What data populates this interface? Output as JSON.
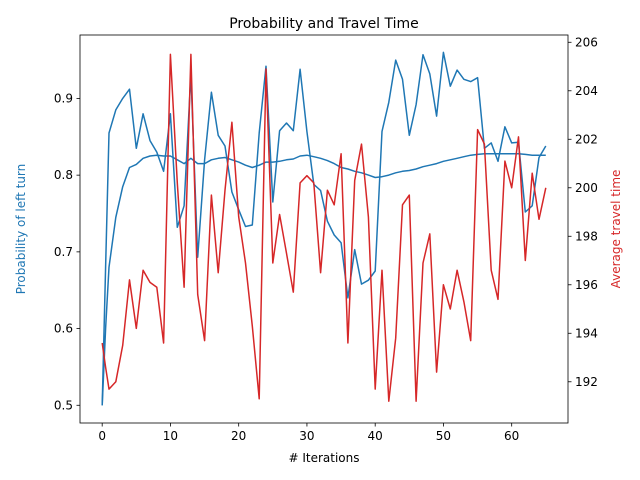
{
  "chart_data": {
    "type": "line",
    "title": "Probability and Travel Time",
    "xlabel": "# Iterations",
    "ylabel_left": "Probability of left turn",
    "ylabel_right": "Average travel time",
    "xlim": [
      -3.25,
      68.25
    ],
    "ylim_left": [
      0.4769,
      0.9827
    ],
    "ylim_right": [
      190.3,
      206.3
    ],
    "x_ticks": [
      0,
      10,
      20,
      30,
      40,
      50,
      60
    ],
    "x_tick_labels": [
      "0",
      "10",
      "20",
      "30",
      "40",
      "50",
      "60"
    ],
    "y_left_ticks": [
      0.5,
      0.6,
      0.7,
      0.8,
      0.9
    ],
    "y_left_tick_labels": [
      "0.5",
      "0.6",
      "0.7",
      "0.8",
      "0.9"
    ],
    "y_right_ticks": [
      192,
      194,
      196,
      198,
      200,
      202,
      204,
      206
    ],
    "y_right_tick_labels": [
      "192",
      "194",
      "196",
      "198",
      "200",
      "202",
      "204",
      "206"
    ],
    "grid": false,
    "colors": {
      "left": "#1f77b4",
      "right": "#d62728"
    },
    "series": [
      {
        "axis": "left",
        "x": [
          0,
          0.5,
          1,
          2,
          3,
          4,
          5,
          6,
          7,
          8,
          9,
          10,
          11,
          12,
          13,
          14,
          15,
          16,
          17,
          18,
          19,
          20,
          21,
          22,
          23,
          24,
          25,
          26,
          27,
          28,
          29,
          30,
          31,
          32,
          33,
          34,
          35,
          36,
          37,
          38,
          39,
          40,
          41,
          42,
          43,
          44,
          45,
          46,
          47,
          48,
          49,
          50,
          51,
          52,
          53,
          54,
          55,
          56,
          57,
          58,
          59,
          60,
          61,
          62,
          63,
          64,
          65
        ],
        "values": [
          0.5,
          0.68,
          0.855,
          0.885,
          0.9,
          0.912,
          0.835,
          0.88,
          0.845,
          0.83,
          0.805,
          0.88,
          0.732,
          0.76,
          0.932,
          0.693,
          0.82,
          0.908,
          0.852,
          0.838,
          0.778,
          0.755,
          0.733,
          0.735,
          0.855,
          0.942,
          0.765,
          0.858,
          0.868,
          0.858,
          0.938,
          0.857,
          0.788,
          0.78,
          0.74,
          0.722,
          0.712,
          0.64,
          0.703,
          0.658,
          0.663,
          0.675,
          0.857,
          0.895,
          0.95,
          0.925,
          0.852,
          0.892,
          0.957,
          0.932,
          0.877,
          0.96,
          0.916,
          0.937,
          0.925,
          0.922,
          0.927,
          0.835,
          0.842,
          0.818,
          0.863,
          0.842,
          0.843,
          0.752,
          0.76,
          0.823,
          0.838
        ]
      },
      {
        "axis": "left",
        "x": [
          0,
          0.5,
          1,
          2,
          3,
          4,
          5,
          6,
          7,
          8,
          9,
          10,
          11,
          12,
          13,
          14,
          15,
          16,
          17,
          18,
          19,
          20,
          21,
          22,
          23,
          24,
          25,
          26,
          27,
          28,
          29,
          30,
          31,
          32,
          33,
          34,
          35,
          36,
          37,
          38,
          39,
          40,
          41,
          42,
          43,
          44,
          45,
          46,
          47,
          48,
          49,
          50,
          51,
          52,
          53,
          54,
          55,
          56,
          57,
          58,
          59,
          60,
          61,
          62,
          63,
          64,
          65
        ],
        "values": [
          0.5,
          0.6,
          0.68,
          0.745,
          0.785,
          0.81,
          0.814,
          0.822,
          0.825,
          0.826,
          0.825,
          0.825,
          0.82,
          0.815,
          0.822,
          0.815,
          0.815,
          0.82,
          0.822,
          0.823,
          0.82,
          0.817,
          0.813,
          0.81,
          0.813,
          0.817,
          0.817,
          0.818,
          0.82,
          0.821,
          0.825,
          0.826,
          0.824,
          0.822,
          0.819,
          0.815,
          0.81,
          0.808,
          0.805,
          0.803,
          0.8,
          0.797,
          0.798,
          0.8,
          0.803,
          0.805,
          0.806,
          0.808,
          0.811,
          0.813,
          0.815,
          0.818,
          0.82,
          0.822,
          0.824,
          0.826,
          0.827,
          0.828,
          0.828,
          0.828,
          0.828,
          0.828,
          0.828,
          0.827,
          0.826,
          0.826,
          0.826
        ]
      },
      {
        "axis": "right",
        "x": [
          0,
          0.5,
          1,
          2,
          3,
          4,
          5,
          6,
          7,
          8,
          9,
          10,
          11,
          12,
          13,
          14,
          15,
          16,
          17,
          18,
          19,
          20,
          21,
          22,
          23,
          24,
          25,
          26,
          27,
          28,
          29,
          30,
          31,
          32,
          33,
          34,
          35,
          36,
          37,
          38,
          39,
          40,
          41,
          42,
          43,
          44,
          45,
          46,
          47,
          48,
          49,
          50,
          51,
          52,
          53,
          54,
          55,
          56,
          57,
          58,
          59,
          60,
          61,
          62,
          63,
          64,
          65
        ],
        "values": [
          193.6,
          192.6,
          191.7,
          192.0,
          193.5,
          196.2,
          194.2,
          196.6,
          196.1,
          195.9,
          193.6,
          205.5,
          200.2,
          195.9,
          205.5,
          195.6,
          193.7,
          199.7,
          196.5,
          199.9,
          202.7,
          198.8,
          196.9,
          194.3,
          191.3,
          204.9,
          196.9,
          198.9,
          197.3,
          195.7,
          200.2,
          200.5,
          200.2,
          196.5,
          199.9,
          199.3,
          201.4,
          193.6,
          200.3,
          201.8,
          198.8,
          191.7,
          196.6,
          191.2,
          193.8,
          199.3,
          199.7,
          191.2,
          196.9,
          198.1,
          192.4,
          196.0,
          195.0,
          196.6,
          195.3,
          193.7,
          202.4,
          201.8,
          196.6,
          195.4,
          201.1,
          200.0,
          202.1,
          197.0,
          200.6,
          198.7,
          200.0
        ]
      }
    ]
  }
}
